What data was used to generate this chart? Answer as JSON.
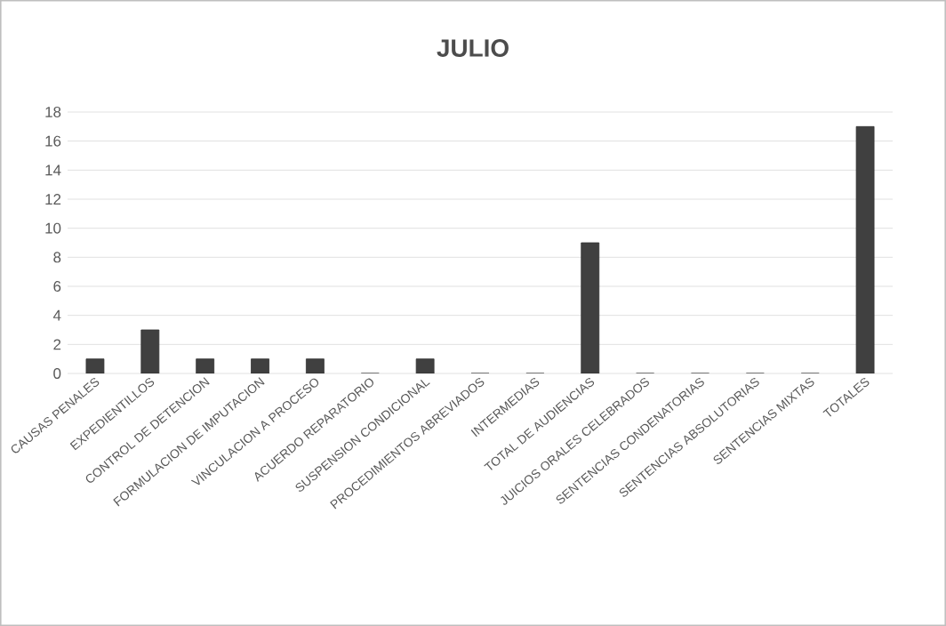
{
  "chart_data": {
    "type": "bar",
    "title": "JULIO",
    "categories": [
      "CAUSAS PENALES",
      "EXPEDIENTILLOS",
      "CONTROL DE DETENCION",
      "FORMULACION DE IMPUTACION",
      "VINCULACION A PROCESO",
      "ACUERDO REPARATORIO",
      "SUSPENSION CONDICIONAL",
      "PROCEDIMIENTOS ABREVIADOS",
      "INTERMEDIAS",
      "TOTAL DE AUDIENCIAS",
      "JUICIOS ORALES CELEBRADOS",
      "SENTENCIAS CONDENATORIAS",
      "SENTENCIAS ABSOLUTORIAS",
      "SENTENCIAS MIXTAS",
      "TOTALES"
    ],
    "values": [
      1,
      3,
      1,
      1,
      1,
      0,
      1,
      0,
      0,
      9,
      0,
      0,
      0,
      0,
      17
    ],
    "color": "#404040",
    "ylim": [
      0,
      18
    ],
    "yticks": [
      0,
      2,
      4,
      6,
      8,
      10,
      12,
      14,
      16,
      18
    ],
    "grid": "y"
  }
}
